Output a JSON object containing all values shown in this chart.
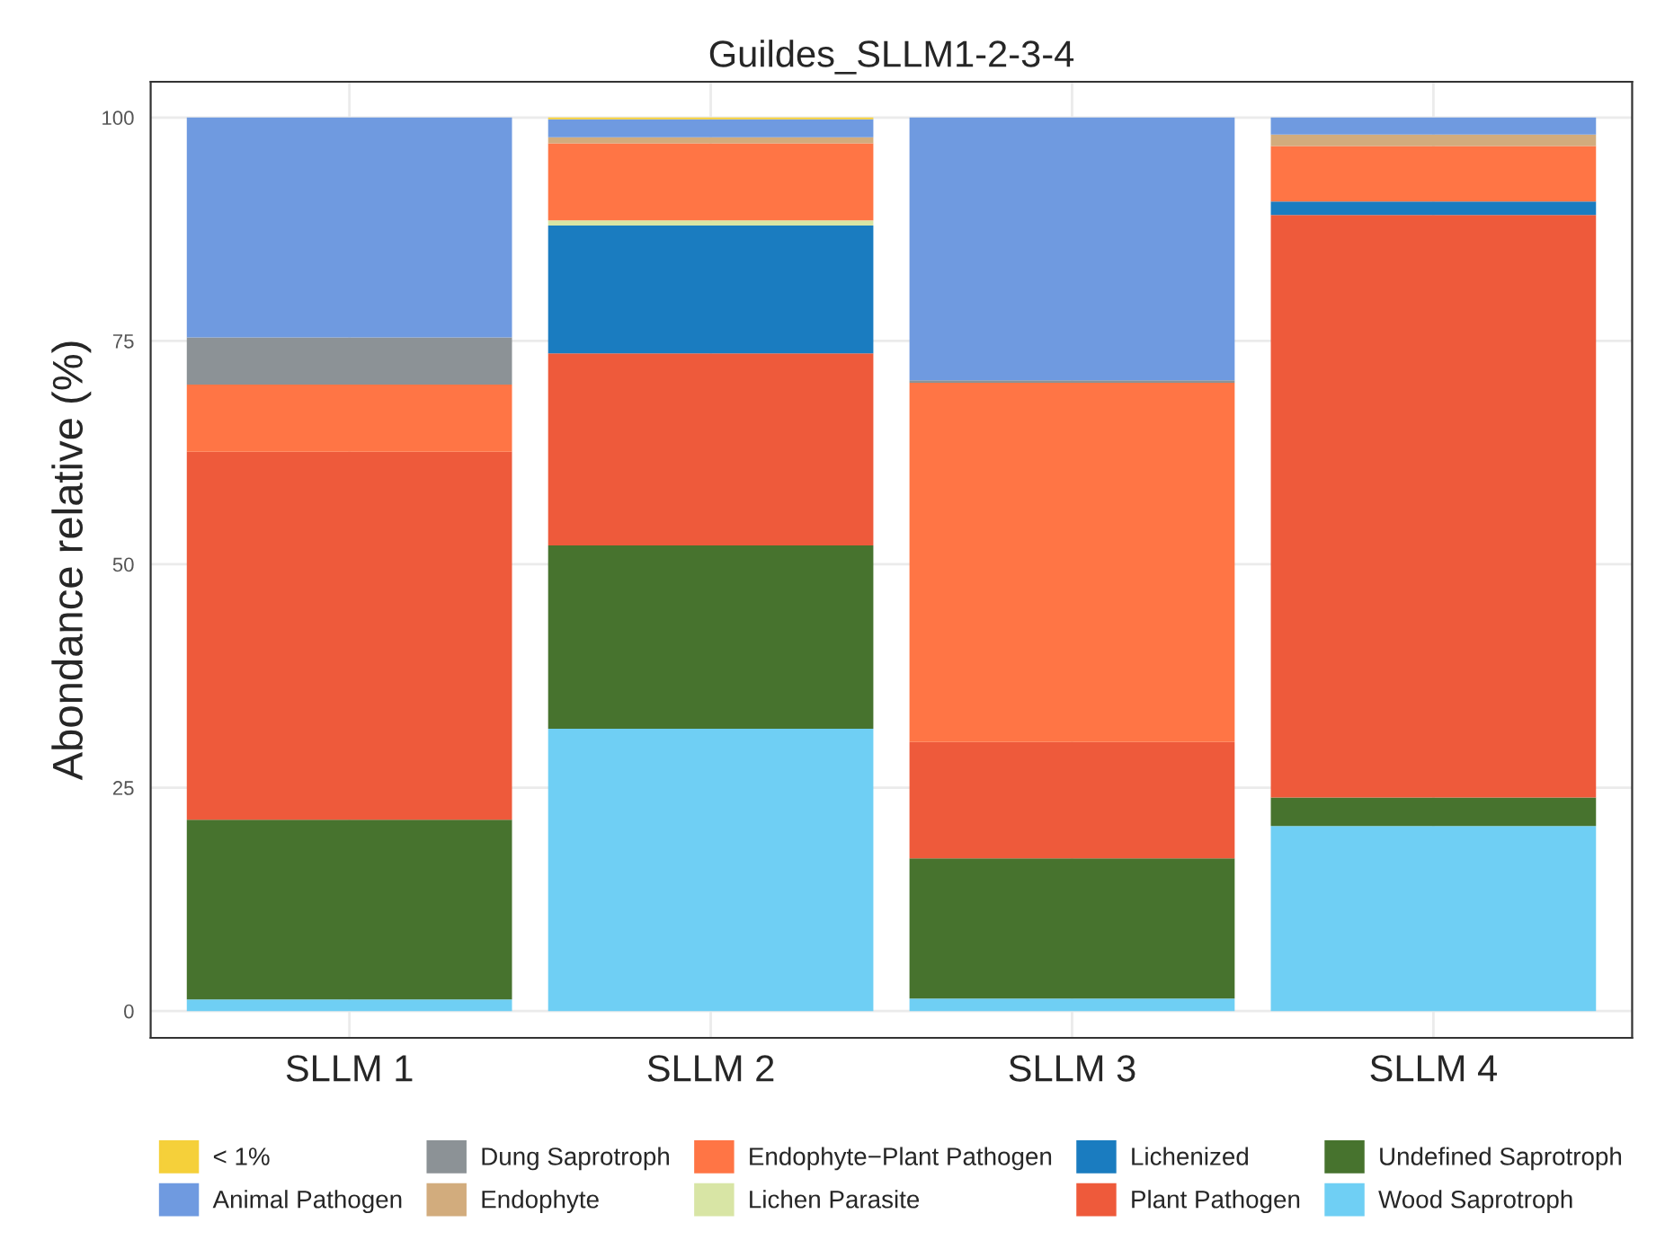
{
  "chart_data": {
    "type": "bar",
    "stacked": true,
    "title": "Guildes_SLLM1-2-3-4",
    "ylabel": "Abondance relative (%)",
    "categories": [
      "SLLM 1",
      "SLLM 2",
      "SLLM 3",
      "SLLM 4"
    ],
    "series": [
      {
        "name": "Wood Saprotroph",
        "color": "#6fcff4",
        "values": [
          1.3,
          31.6,
          1.4,
          20.7
        ]
      },
      {
        "name": "Undefined Saprotroph",
        "color": "#47732e",
        "values": [
          20.1,
          20.5,
          15.7,
          3.2
        ]
      },
      {
        "name": "Plant Pathogen",
        "color": "#ee5a3b",
        "values": [
          41.2,
          21.5,
          13.0,
          65.2
        ]
      },
      {
        "name": "Lichenized",
        "color": "#1a7cc0",
        "values": [
          0,
          14.3,
          0,
          1.5
        ]
      },
      {
        "name": "Lichen Parasite",
        "color": "#d8e5a5",
        "values": [
          0,
          0.6,
          0,
          0
        ]
      },
      {
        "name": "Endophyte−Plant Pathogen",
        "color": "#ff7545",
        "values": [
          7.5,
          8.6,
          40.2,
          6.2
        ]
      },
      {
        "name": "Endophyte",
        "color": "#d2ac7d",
        "values": [
          0,
          0.7,
          0,
          1.3
        ]
      },
      {
        "name": "Dung Saprotroph",
        "color": "#8c9296",
        "values": [
          5.3,
          0,
          0.3,
          0
        ]
      },
      {
        "name": "Animal Pathogen",
        "color": "#6f9ae0",
        "values": [
          24.6,
          2.0,
          29.4,
          1.9
        ]
      },
      {
        "name": "< 1%",
        "color": "#f5d03a",
        "values": [
          0,
          0.2,
          0,
          0
        ]
      }
    ],
    "ylim": [
      -3,
      104
    ],
    "yticks": [
      0,
      25,
      50,
      75,
      100
    ],
    "grid": true,
    "legend": "bottom"
  }
}
